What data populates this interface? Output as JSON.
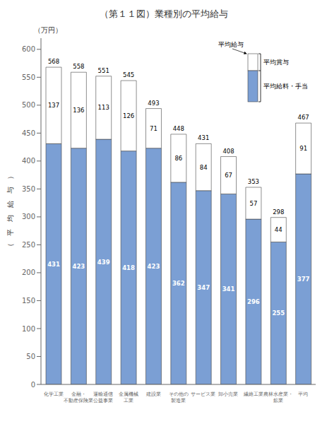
{
  "chart_data": {
    "type": "bar",
    "stacked": true,
    "title": "（第１１図）業種別の平均給与",
    "ylabel": "（　平　均　給　与　）",
    "y_unit_label": "（万円）",
    "annotation": "平均給与",
    "categories": [
      "化学工業",
      "金融・\n不動産保険業",
      "運輸通信\n公益事業",
      "金属機械\n工業",
      "建設業",
      "その他の\n製造業",
      "サービス業",
      "卸小売業",
      "繊維工業",
      "農林水産業・\n鉱業",
      "平均"
    ],
    "series": [
      {
        "name": "平均給料・手当",
        "color": "#7b9fd4",
        "values": [
          431,
          423,
          439,
          418,
          423,
          362,
          347,
          341,
          296,
          255,
          377
        ]
      },
      {
        "name": "平均賞与",
        "color": "#ffffff",
        "values": [
          137,
          136,
          113,
          126,
          71,
          86,
          84,
          67,
          57,
          44,
          91
        ]
      }
    ],
    "totals": [
      568,
      558,
      551,
      545,
      493,
      448,
      431,
      408,
      353,
      298,
      467
    ],
    "ylim": [
      0,
      620
    ],
    "yticks": [
      0,
      50,
      100,
      150,
      200,
      250,
      300,
      350,
      400,
      450,
      500,
      550,
      600
    ],
    "grid": false,
    "legend": "upper right",
    "data_labels": true
  }
}
